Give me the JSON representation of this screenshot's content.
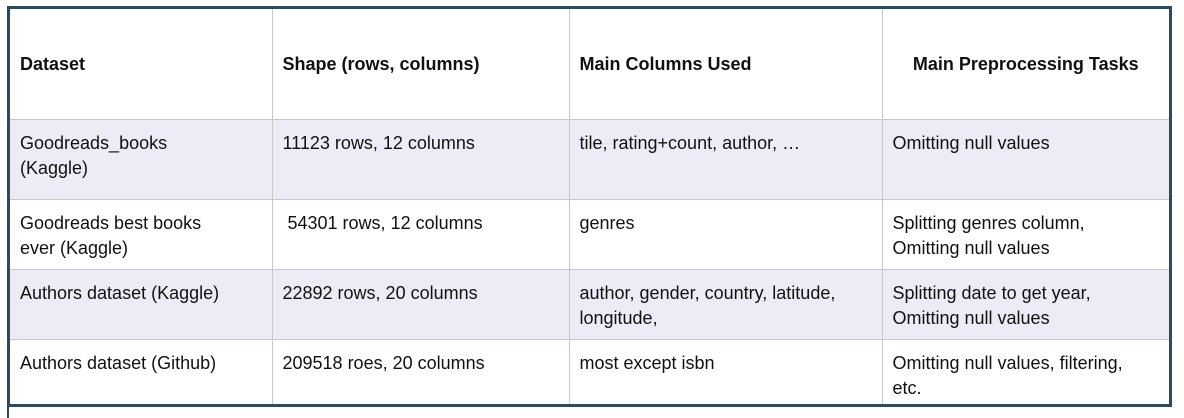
{
  "table": {
    "headers": [
      "Dataset",
      "Shape (rows, columns)",
      "Main Columns Used",
      "Main Preprocessing Tasks"
    ],
    "rows": [
      [
        "Goodreads_books\n(Kaggle)",
        "11123 rows, 12 columns",
        "tile, rating+count, author, …",
        "Omitting null values"
      ],
      [
        "Goodreads best books\never (Kaggle)",
        " 54301 rows, 12 columns",
        "genres",
        "Splitting genres column,\nOmitting null values"
      ],
      [
        "Authors dataset (Kaggle)",
        "22892 rows, 20 columns",
        "author, gender, country, latitude,\nlongitude,",
        "Splitting date to get year,\nOmitting null values"
      ],
      [
        "Authors dataset (Github)",
        "209518 roes, 20 columns",
        "most except isbn",
        "Omitting null values, filtering,\netc."
      ]
    ]
  }
}
